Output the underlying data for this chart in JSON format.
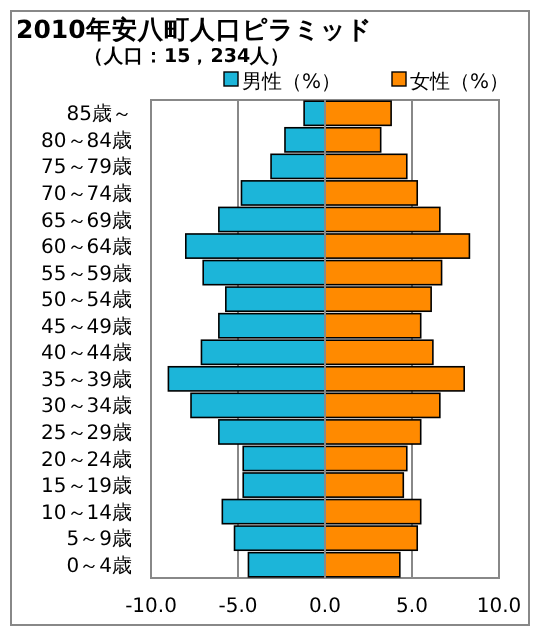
{
  "chart_data": {
    "type": "bar",
    "orientation": "horizontal",
    "title": "2010年安八町人口ピラミッド",
    "subtitle": "（人口：15，234人）",
    "categories": [
      "85歳～",
      "80～84歳",
      "75～79歳",
      "70～74歳",
      "65～69歳",
      "60～64歳",
      "55～59歳",
      "50～54歳",
      "45～49歳",
      "40～44歳",
      "35～39歳",
      "30～34歳",
      "25～29歳",
      "20～24歳",
      "15～19歳",
      "10～14歳",
      "5～9歳",
      "0～4歳"
    ],
    "series": [
      {
        "name": "男性（%）",
        "color": "#1cb5d9",
        "values": [
          -1.2,
          -2.3,
          -3.1,
          -4.8,
          -6.1,
          -8.0,
          -7.0,
          -5.7,
          -6.1,
          -7.1,
          -9.0,
          -7.7,
          -6.1,
          -4.7,
          -4.7,
          -5.9,
          -5.2,
          -4.4
        ]
      },
      {
        "name": "女性（%）",
        "color": "#ff8a00",
        "values": [
          3.8,
          3.2,
          4.7,
          5.3,
          6.6,
          8.3,
          6.7,
          6.1,
          5.5,
          6.2,
          8.0,
          6.6,
          5.5,
          4.7,
          4.5,
          5.5,
          5.3,
          4.3
        ]
      }
    ],
    "xlim": [
      -10,
      10
    ],
    "xticks": [
      {
        "value": -10,
        "label": "-10.0"
      },
      {
        "value": -5,
        "label": "-5.0"
      },
      {
        "value": 0,
        "label": "0.0"
      },
      {
        "value": 5,
        "label": "5.0"
      },
      {
        "value": 10,
        "label": "10.0"
      }
    ],
    "grid": "x",
    "legend": "top right",
    "stacked": true
  }
}
